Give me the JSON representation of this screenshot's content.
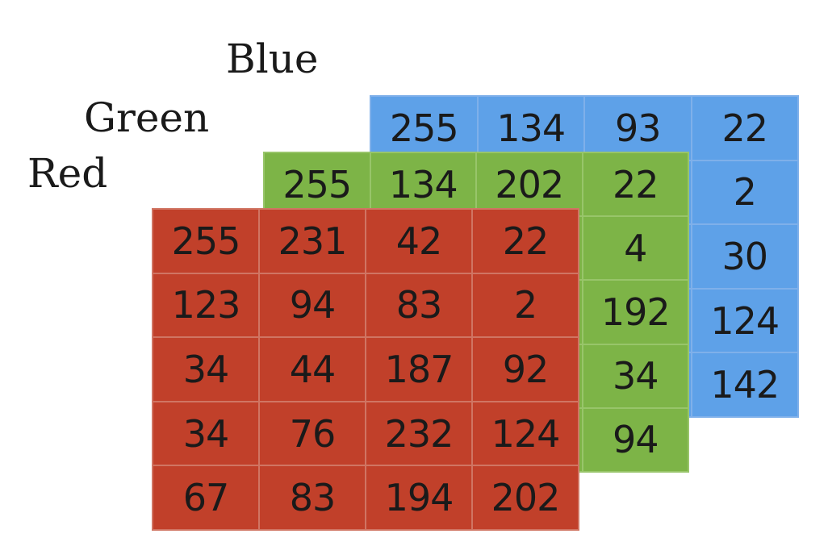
{
  "labels": {
    "blue": "Blue",
    "green": "Green",
    "red": "Red"
  },
  "colors": {
    "blue": "#5ea1e8",
    "green": "#7db447",
    "red": "#c1402a"
  },
  "blue_matrix": [
    [
      "255",
      "134",
      "93",
      "22"
    ],
    [
      "",
      "",
      "",
      "2"
    ],
    [
      "",
      "",
      "",
      "30"
    ],
    [
      "",
      "",
      "",
      "124"
    ],
    [
      "",
      "",
      "",
      "142"
    ]
  ],
  "green_matrix": [
    [
      "255",
      "134",
      "202",
      "22"
    ],
    [
      "",
      "",
      "",
      "4"
    ],
    [
      "",
      "",
      "",
      "192"
    ],
    [
      "",
      "",
      "",
      "34"
    ],
    [
      "",
      "",
      "",
      "94"
    ]
  ],
  "red_matrix": [
    [
      "255",
      "231",
      "42",
      "22"
    ],
    [
      "123",
      "94",
      "83",
      "2"
    ],
    [
      "34",
      "44",
      "187",
      "92"
    ],
    [
      "34",
      "76",
      "232",
      "124"
    ],
    [
      "67",
      "83",
      "194",
      "202"
    ]
  ]
}
